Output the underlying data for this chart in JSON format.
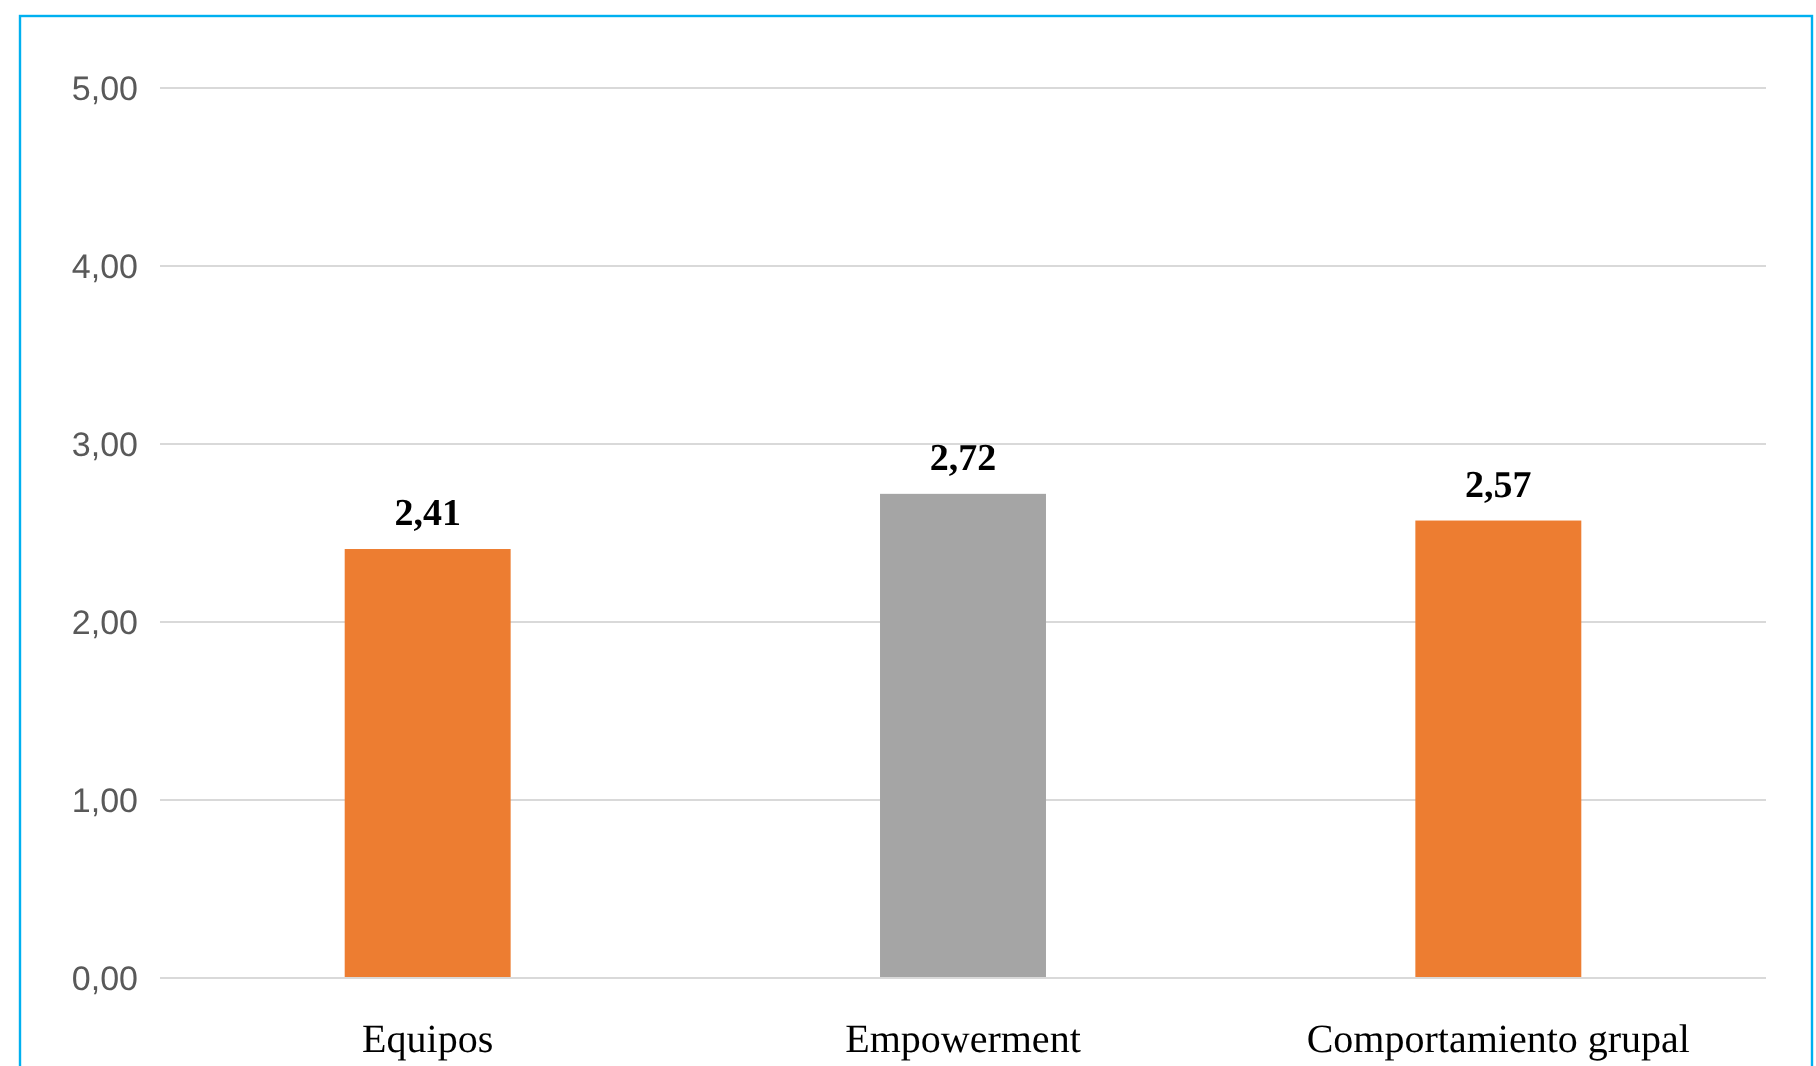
{
  "chart_data": {
    "type": "bar",
    "categories": [
      "Equipos",
      "Empowerment",
      "Comportamiento grupal"
    ],
    "values": [
      2.41,
      2.72,
      2.57
    ],
    "colors": [
      "#ed7d31",
      "#a5a5a5",
      "#ed7d31"
    ],
    "value_labels": [
      "2,41",
      "2,72",
      "2,57"
    ],
    "ylim": [
      0,
      5
    ],
    "yticks": [
      {
        "value": 0,
        "label": "0,00"
      },
      {
        "value": 1,
        "label": "1,00"
      },
      {
        "value": 2,
        "label": "2,00"
      },
      {
        "value": 3,
        "label": "3,00"
      },
      {
        "value": 4,
        "label": "4,00"
      },
      {
        "value": 5,
        "label": "5,00"
      }
    ],
    "grid": "y"
  }
}
